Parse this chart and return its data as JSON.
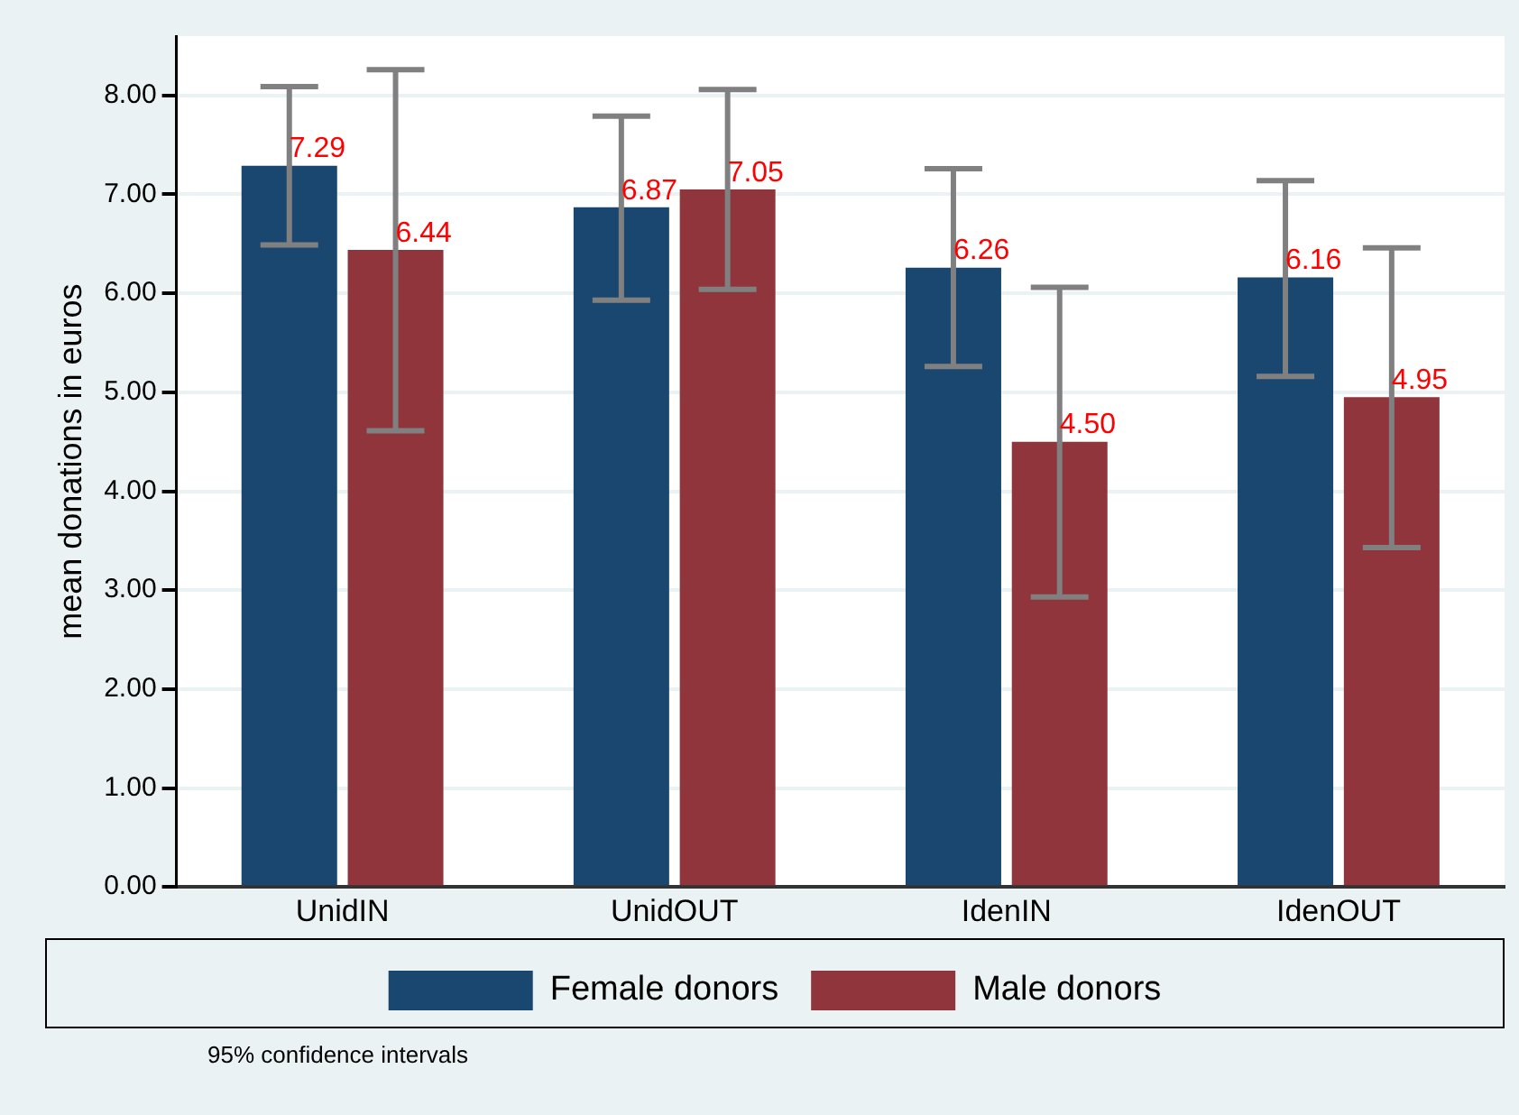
{
  "chart_data": {
    "type": "bar",
    "ylabel": "mean donations in euros",
    "categories": [
      "UnidIN",
      "UnidOUT",
      "IdenIN",
      "IdenOUT"
    ],
    "series": [
      {
        "name": "Female donors",
        "color": "#1a476f",
        "values": [
          7.29,
          6.87,
          6.26,
          6.16
        ],
        "value_labels": [
          "7.29",
          "6.87",
          "6.26",
          "6.16"
        ],
        "errors": [
          [
            6.49,
            8.09
          ],
          [
            5.93,
            7.79
          ],
          [
            5.26,
            7.26
          ],
          [
            5.16,
            7.14
          ]
        ]
      },
      {
        "name": "Male donors",
        "color": "#90353b",
        "values": [
          6.44,
          7.05,
          4.5,
          4.95
        ],
        "value_labels": [
          "6.44",
          "7.05",
          "4.50",
          "4.95"
        ],
        "errors": [
          [
            4.61,
            8.26
          ],
          [
            6.04,
            8.06
          ],
          [
            2.93,
            6.06
          ],
          [
            3.43,
            6.46
          ]
        ]
      }
    ],
    "ylim": [
      0,
      8.6
    ],
    "yticks": [
      {
        "value": 0,
        "label": "0.00"
      },
      {
        "value": 1,
        "label": "1.00"
      },
      {
        "value": 2,
        "label": "2.00"
      },
      {
        "value": 3,
        "label": "3.00"
      },
      {
        "value": 4,
        "label": "4.00"
      },
      {
        "value": 5,
        "label": "5.00"
      },
      {
        "value": 6,
        "label": "6.00"
      },
      {
        "value": 7,
        "label": "7.00"
      },
      {
        "value": 8,
        "label": "8.00"
      }
    ],
    "grid": "y",
    "legend": "bottom",
    "annotations": [
      "95% confidence intervals"
    ]
  }
}
